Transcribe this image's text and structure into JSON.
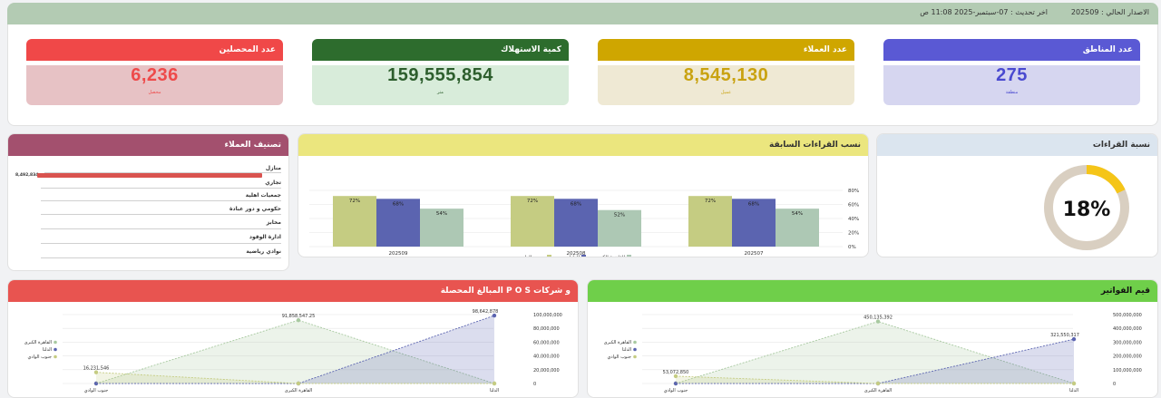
{
  "header": {
    "version_label": "الاصدار الحالي : 202509",
    "last_update_label": "اخر تحديث : 07-سبتمبر-2025 11:08 ص"
  },
  "kpis": [
    {
      "title": "عدد المناطق",
      "value": "275",
      "unit": "منطقة",
      "header_color": "#5a59d4",
      "body_color": "#d6d6f0",
      "value_color": "#4a4ad0"
    },
    {
      "title": "عدد العملاء",
      "value": "8,545,130",
      "unit": "عميل",
      "header_color": "#cfa600",
      "body_color": "#efe9d4",
      "value_color": "#c9a210"
    },
    {
      "title": "كمية الاستهلاك",
      "value": "159,555,854",
      "unit": "متر",
      "header_color": "#2d6c2d",
      "body_color": "#d8ecda",
      "value_color": "#2d5e2d"
    },
    {
      "title": "عدد المحصلين",
      "value": "6,236",
      "unit": "محصل",
      "header_color": "#f04848",
      "body_color": "#e7c2c5",
      "value_color": "#ee4a4a"
    }
  ],
  "readings_ratio": {
    "title": "نسبة القراءات",
    "percent": 18,
    "value_label": "18%"
  },
  "prev_readings": {
    "title": "نسب القراءات السابقة",
    "chart_data": {
      "type": "bar",
      "categories": [
        "202509",
        "202508",
        "202507"
      ],
      "series": [
        {
          "name": "جنوب الوادي",
          "color": "#c5cc82",
          "values": [
            72,
            72,
            72
          ]
        },
        {
          "name": "الدلتا",
          "color": "#5b64b0",
          "values": [
            68,
            68,
            68
          ]
        },
        {
          "name": "القاهرة الكبرى",
          "color": "#adc8b4",
          "values": [
            54,
            52,
            54
          ]
        }
      ],
      "data_labels": [
        "72%",
        "68%",
        "54%",
        "72%",
        "68%",
        "52%",
        "72%",
        "68%",
        "54%"
      ],
      "y_ticks": [
        "80%",
        "60%",
        "40%",
        "20%",
        "0%"
      ],
      "ylim": [
        0,
        80
      ],
      "legend_position": "bottom"
    }
  },
  "customer_class": {
    "title": "تصنيف العملاء",
    "chart_data": {
      "type": "bar",
      "categories": [
        "منازل",
        "تجاري",
        "جمعيات اهلية",
        "حكومي و دور عبادة",
        "مخابز",
        "ادارة الوقود",
        "نوادي رياضية"
      ],
      "values": [
        8492834,
        null,
        null,
        null,
        null,
        null,
        null
      ],
      "data_label": "8,492,834"
    }
  },
  "invoices": {
    "title": "قيم الفواتير",
    "chart_data": {
      "type": "area",
      "categories": [
        "جنوب الوادي",
        "القاهرة الكبرى",
        "الدلتا"
      ],
      "series": [
        {
          "name": "القاهرة الكبرى",
          "color": "#a8c9a0",
          "values": [
            0,
            450135392,
            0
          ]
        },
        {
          "name": "الدلتا",
          "color": "#5b64b0",
          "values": [
            0,
            0,
            321550317
          ]
        },
        {
          "name": "جنوب الوادي",
          "color": "#c5cc82",
          "values": [
            53072850,
            0,
            0
          ]
        }
      ],
      "data_labels": [
        "53,072,850",
        "450,135,392",
        "321,550,317"
      ],
      "y_ticks": [
        "500,000,000",
        "400,000,000",
        "300,000,000",
        "200,000,000",
        "100,000,000",
        "0"
      ],
      "ylim": [
        0,
        500000000
      ],
      "legend_position": "left"
    }
  },
  "collections": {
    "title": "المبالغ المحصلة P O S و شركات",
    "chart_data": {
      "type": "area",
      "categories": [
        "جنوب الوادي",
        "القاهرة الكبرى",
        "الدلتا"
      ],
      "series": [
        {
          "name": "القاهرة الكبرى",
          "color": "#a8c9a0",
          "values": [
            0,
            91858547,
            0
          ]
        },
        {
          "name": "الدلتا",
          "color": "#5b64b0",
          "values": [
            0,
            0,
            98642878
          ]
        },
        {
          "name": "جنوب الوادي",
          "color": "#c5cc82",
          "values": [
            16231546,
            0,
            0
          ]
        }
      ],
      "data_labels": [
        "16,231,546",
        "91,858,547.25",
        "98,642,878"
      ],
      "y_ticks": [
        "100,000,000",
        "80,000,000",
        "60,000,000",
        "40,000,000",
        "20,000,000",
        "0"
      ],
      "ylim": [
        0,
        100000000
      ],
      "legend_position": "left"
    }
  }
}
